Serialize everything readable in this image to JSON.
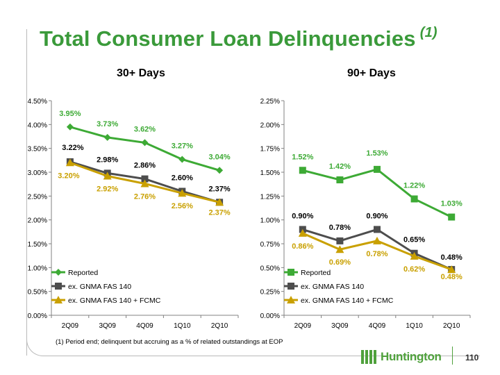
{
  "title": "Total Consumer Loan Delinquencies",
  "title_note": "(1)",
  "footnote": "(1) Period end; delinquent but accruing as a % of related outstandings at EOP",
  "logo_text": "Huntington",
  "page_number": "110",
  "colors": {
    "title": "#3a9a3a",
    "reported": "#3daa35",
    "ex_gnma": "#4d4d4d",
    "ex_gnma_fcmc": "#c9a000",
    "axis": "#808080"
  },
  "chart_data": [
    {
      "type": "line",
      "title": "30+ Days",
      "categories": [
        "2Q09",
        "3Q09",
        "4Q09",
        "1Q10",
        "2Q10"
      ],
      "ylim": [
        0,
        4.5
      ],
      "yticks": [
        "0.00%",
        "0.50%",
        "1.00%",
        "1.50%",
        "2.00%",
        "2.50%",
        "3.00%",
        "3.50%",
        "4.00%",
        "4.50%"
      ],
      "ytick_values": [
        0,
        0.5,
        1.0,
        1.5,
        2.0,
        2.5,
        3.0,
        3.5,
        4.0,
        4.5
      ],
      "grid": false,
      "legend_position": "bottom-left",
      "series": [
        {
          "name": "Reported",
          "marker": "diamond",
          "color": "#3daa35",
          "values": [
            3.95,
            3.73,
            3.62,
            3.27,
            3.04
          ],
          "labels": [
            "3.95%",
            "3.73%",
            "3.62%",
            "3.27%",
            "3.04%"
          ]
        },
        {
          "name": "ex. GNMA FAS 140",
          "marker": "square",
          "color": "#4d4d4d",
          "values": [
            3.22,
            2.98,
            2.86,
            2.6,
            2.37
          ],
          "labels": [
            "3.22%",
            "2.98%",
            "2.86%",
            "2.60%",
            "2.37%"
          ]
        },
        {
          "name": "ex. GNMA FAS 140 + FCMC",
          "marker": "triangle",
          "color": "#c9a000",
          "values": [
            3.2,
            2.92,
            2.76,
            2.56,
            2.37
          ],
          "labels": [
            "3.20%",
            "2.92%",
            "2.76%",
            "2.56%",
            "2.37%"
          ]
        }
      ]
    },
    {
      "type": "line",
      "title": "90+ Days",
      "categories": [
        "2Q09",
        "3Q09",
        "4Q09",
        "1Q10",
        "2Q10"
      ],
      "ylim": [
        0,
        2.25
      ],
      "yticks": [
        "0.00%",
        "0.25%",
        "0.50%",
        "0.75%",
        "1.00%",
        "1.25%",
        "1.50%",
        "1.75%",
        "2.00%",
        "2.25%"
      ],
      "ytick_values": [
        0,
        0.25,
        0.5,
        0.75,
        1.0,
        1.25,
        1.5,
        1.75,
        2.0,
        2.25
      ],
      "grid": false,
      "legend_position": "bottom-left",
      "series": [
        {
          "name": "Reported",
          "marker": "square",
          "color": "#3daa35",
          "values": [
            1.52,
            1.42,
            1.53,
            1.22,
            1.03
          ],
          "labels": [
            "1.52%",
            "1.42%",
            "1.53%",
            "1.22%",
            "1.03%"
          ]
        },
        {
          "name": "ex. GNMA FAS 140",
          "marker": "square",
          "color": "#4d4d4d",
          "values": [
            0.9,
            0.78,
            0.9,
            0.65,
            0.48
          ],
          "labels": [
            "0.90%",
            "0.78%",
            "0.90%",
            "0.65%",
            "0.48%"
          ]
        },
        {
          "name": "ex. GNMA FAS 140 + FCMC",
          "marker": "triangle",
          "color": "#c9a000",
          "values": [
            0.86,
            0.69,
            0.78,
            0.62,
            0.48
          ],
          "labels": [
            "0.86%",
            "0.69%",
            "0.78%",
            "0.62%",
            "0.48%"
          ]
        }
      ]
    }
  ]
}
